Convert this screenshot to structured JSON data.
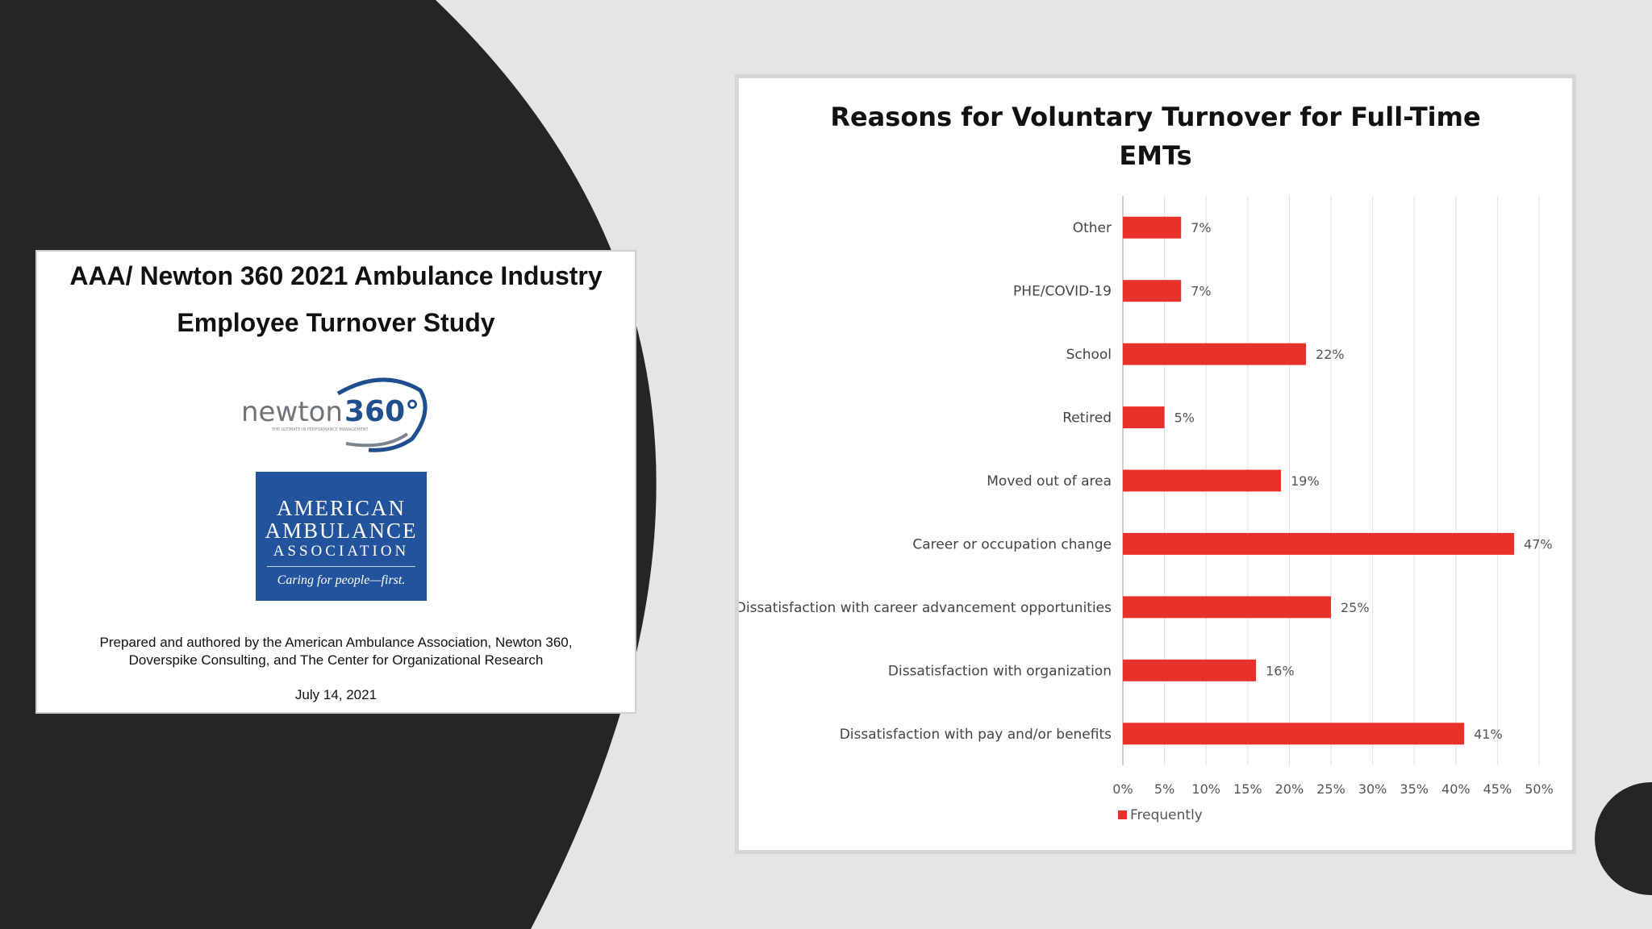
{
  "report": {
    "title_line1": "AAA/ Newton 360 2021 Ambulance Industry",
    "title_line2": "Employee Turnover Study",
    "newton_logo": {
      "wordmark": "newton",
      "number": "360°",
      "tagline": "THE ULTIMATE IN PERFORMANCE MANAGEMENT"
    },
    "aaa_logo": {
      "line1": "AMERICAN",
      "line2": "AMBULANCE",
      "line3": "ASSOCIATION",
      "tagline": "Caring for people—first."
    },
    "credit_line1": "Prepared and authored by the American Ambulance Association, Newton 360,",
    "credit_line2": "Doverspike Consulting, and The Center for Organizational Research",
    "date": "July 14, 2021"
  },
  "colors": {
    "background": "#e7e4e8",
    "dark_shape": "#252426",
    "bar": "#e8312a",
    "aaa_blue": "#23539c"
  },
  "chart_data": {
    "type": "bar",
    "orientation": "horizontal",
    "title_line1": "Reasons for Voluntary Turnover for Full-Time",
    "title_line2": "EMTs",
    "categories": [
      "Other",
      "PHE/COVID-19",
      "School",
      "Retired",
      "Moved out of area",
      "Career or occupation change",
      "Dissatisfaction with career advancement opportunities",
      "Dissatisfaction with organization",
      "Dissatisfaction with pay and/or benefits"
    ],
    "series": [
      {
        "name": "Frequently",
        "values": [
          7,
          7,
          22,
          5,
          19,
          47,
          25,
          16,
          41
        ],
        "labels": [
          "7%",
          "7%",
          "22%",
          "5%",
          "19%",
          "47%",
          "25%",
          "16%",
          "41%"
        ]
      }
    ],
    "x_ticks": [
      "0%",
      "5%",
      "10%",
      "15%",
      "20%",
      "25%",
      "30%",
      "35%",
      "40%",
      "45%",
      "50%"
    ],
    "xlim": [
      0,
      50
    ],
    "grid": "vertical",
    "legend_position": "bottom"
  }
}
